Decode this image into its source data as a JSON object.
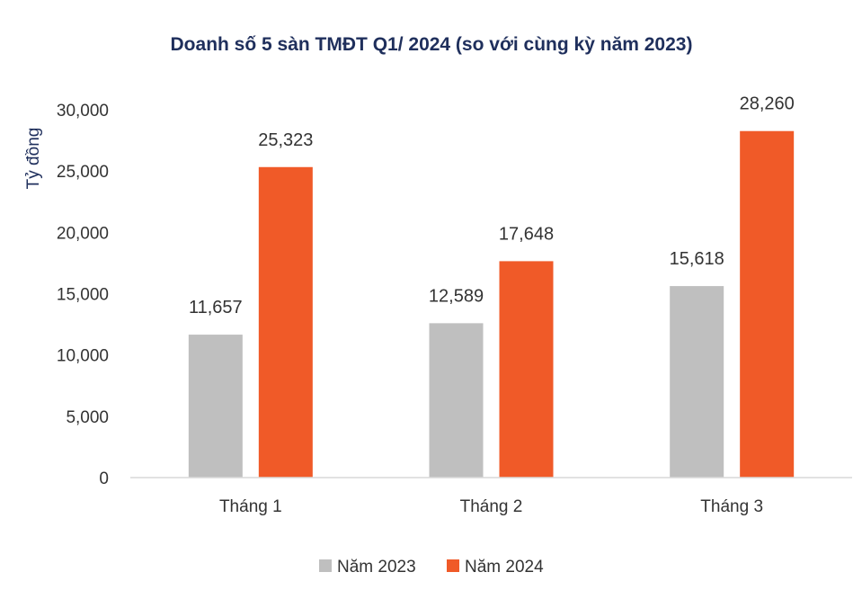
{
  "chart_data": {
    "type": "bar",
    "title": "Doanh số 5 sàn TMĐT Q1/ 2024 (so với cùng kỳ năm 2023)",
    "xlabel": "",
    "ylabel": "Tỷ đồng",
    "categories": [
      "Tháng 1",
      "Tháng 2",
      "Tháng 3"
    ],
    "series": [
      {
        "name": "Năm 2023",
        "color": "#bfbfbf",
        "values": [
          11657,
          12589,
          15618
        ],
        "labels": [
          "11,657",
          "12,589",
          "15,618"
        ]
      },
      {
        "name": "Năm 2024",
        "color": "#f05a28",
        "values": [
          25323,
          17648,
          28260
        ],
        "labels": [
          "25,323",
          "17,648",
          "28,260"
        ]
      }
    ],
    "ylim": [
      0,
      30000
    ],
    "yticks": [
      0,
      5000,
      10000,
      15000,
      20000,
      25000,
      30000
    ],
    "ytick_labels": [
      "0",
      "5,000",
      "10,000",
      "15,000",
      "20,000",
      "25,000",
      "30,000"
    ],
    "grid": false,
    "legend_position": "bottom-center"
  }
}
